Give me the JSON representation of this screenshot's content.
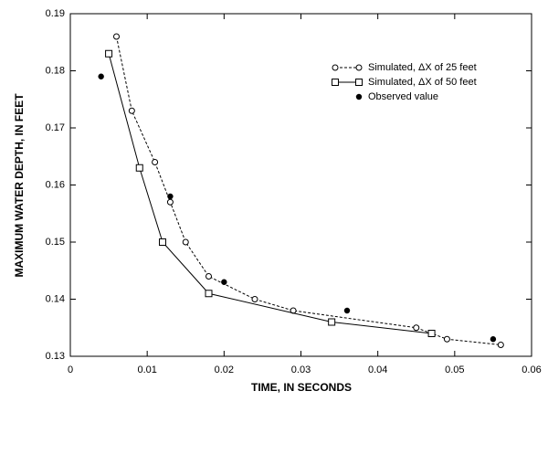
{
  "chart_data": {
    "type": "scatter",
    "xlabel": "TIME, IN SECONDS",
    "ylabel": "MAXIMUM WATER DEPTH, IN FEET",
    "xlim": [
      0,
      0.06
    ],
    "xticks": [
      0,
      0.01,
      0.02,
      0.03,
      0.04,
      0.05,
      0.06
    ],
    "ylim": [
      0.13,
      0.19
    ],
    "yticks": [
      0.13,
      0.14,
      0.15,
      0.16,
      0.17,
      0.18,
      0.19
    ],
    "legend": "upper right",
    "series": [
      {
        "name": "Simulated, ΔX of 25 feet",
        "color": "#000000",
        "line": "dashed",
        "marker": "circle",
        "x": [
          0.006,
          0.008,
          0.011,
          0.013,
          0.015,
          0.018,
          0.024,
          0.029,
          0.045,
          0.049,
          0.056
        ],
        "values": [
          0.186,
          0.173,
          0.164,
          0.157,
          0.15,
          0.144,
          0.14,
          0.138,
          0.135,
          0.133,
          0.132
        ]
      },
      {
        "name": "Simulated, ΔX of 50 feet",
        "color": "#000000",
        "line": "solid",
        "marker": "square",
        "x": [
          0.005,
          0.009,
          0.012,
          0.018,
          0.034,
          0.047
        ],
        "values": [
          0.183,
          0.163,
          0.15,
          0.141,
          0.136,
          0.134
        ]
      },
      {
        "name": "Observed value",
        "color": "#000000",
        "line": "none",
        "marker": "dot",
        "x": [
          0.004,
          0.013,
          0.02,
          0.036,
          0.055
        ],
        "values": [
          0.179,
          0.158,
          0.143,
          0.138,
          0.133
        ]
      }
    ]
  }
}
